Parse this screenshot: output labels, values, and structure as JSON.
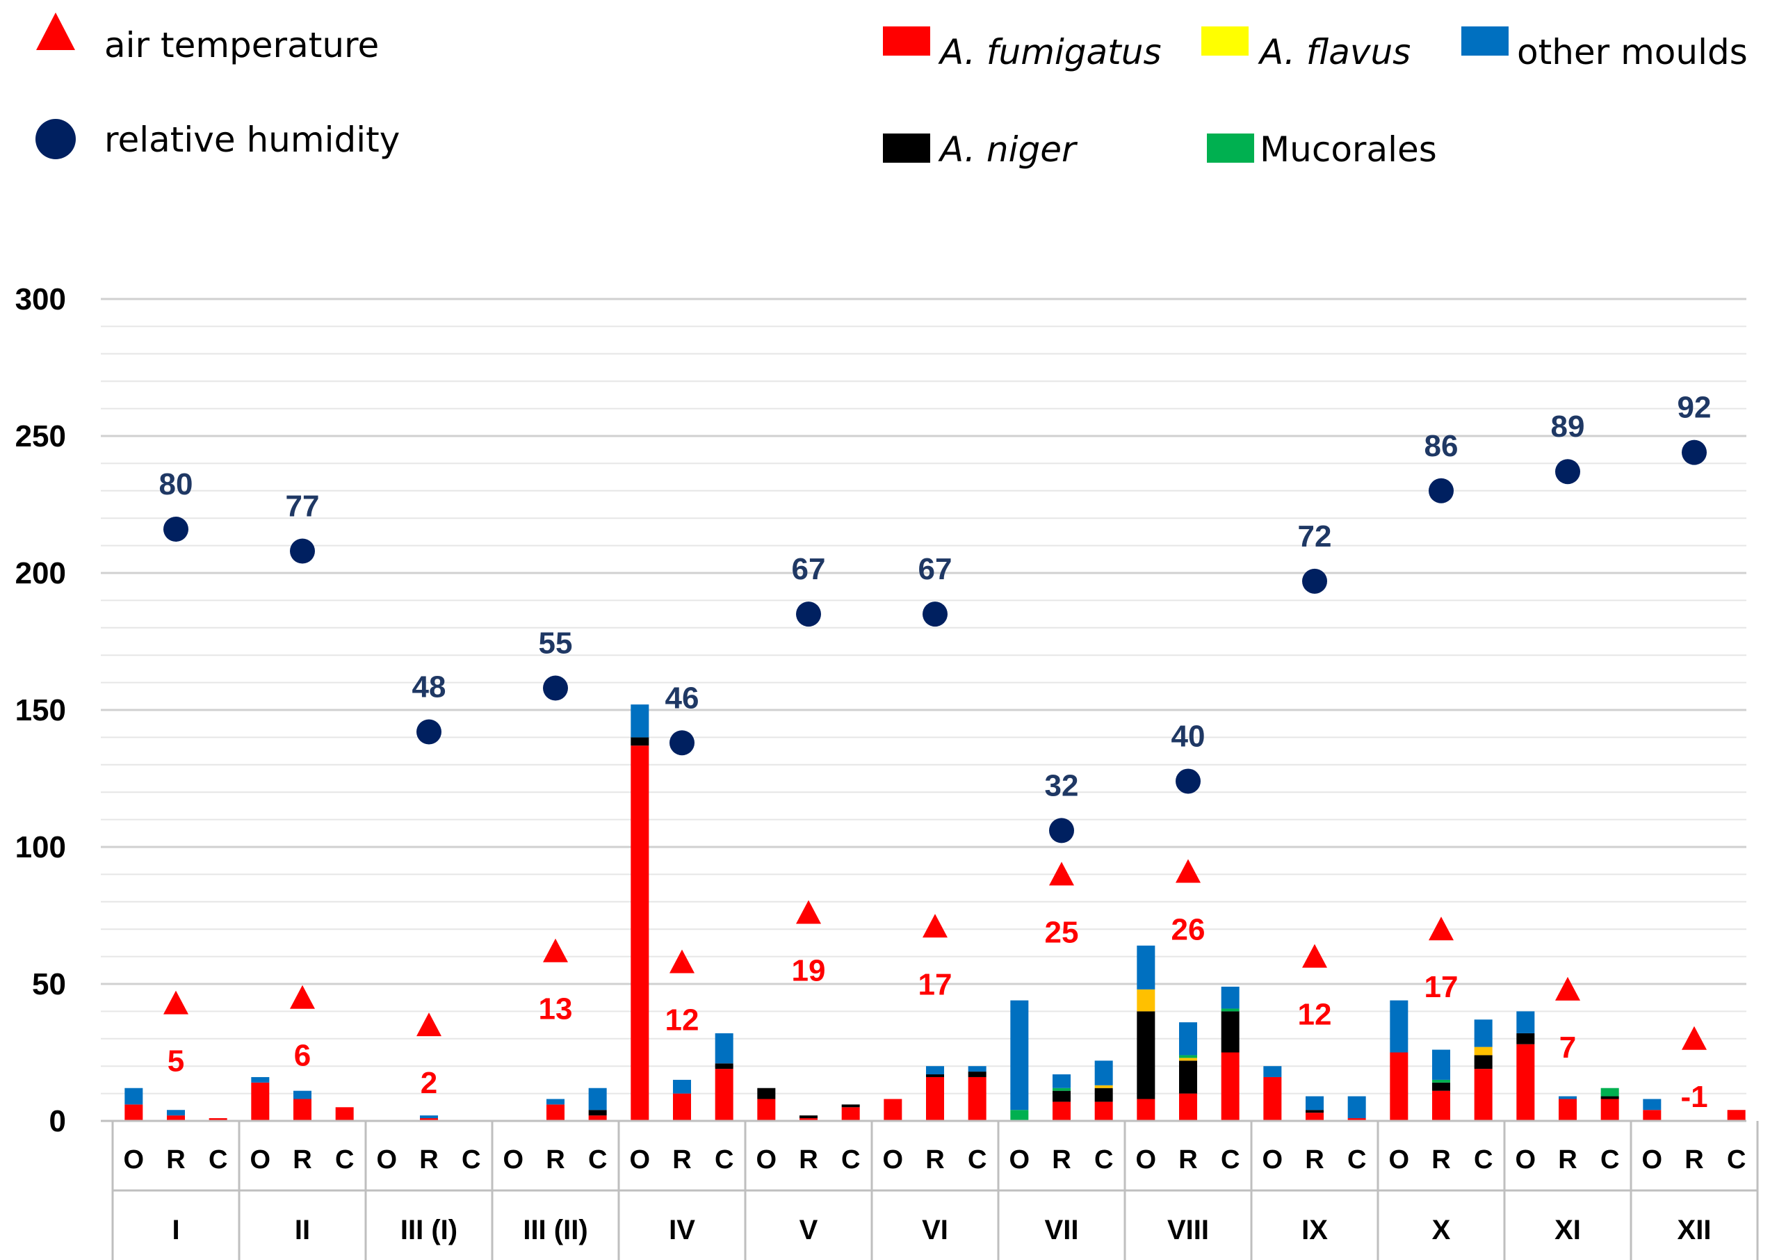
{
  "chart_data": {
    "type": "bar",
    "stacked": true,
    "ylim": [
      0,
      300
    ],
    "yticks": [
      0,
      50,
      100,
      150,
      200,
      250,
      300
    ],
    "groups": [
      "I",
      "II",
      "III (I)",
      "III (II)",
      "IV",
      "V",
      "VI",
      "VII",
      "VIII",
      "IX",
      "X",
      "XI",
      "XII"
    ],
    "subcategories": [
      "O",
      "R",
      "C"
    ],
    "series": [
      {
        "name": "A. fumigatus",
        "color": "#ff0000",
        "values": [
          6,
          2,
          1,
          14,
          8,
          5,
          0,
          1,
          0,
          0,
          6,
          2,
          137,
          10,
          19,
          8,
          1,
          5,
          8,
          16,
          16,
          0,
          7,
          7,
          8,
          10,
          25,
          16,
          3,
          1,
          25,
          11,
          19,
          28,
          8,
          8,
          4,
          0,
          4
        ]
      },
      {
        "name": "A. niger",
        "color": "#000000",
        "values": [
          0,
          0,
          0,
          0,
          0,
          0,
          0,
          0,
          0,
          0,
          0,
          2,
          3,
          0,
          2,
          4,
          1,
          1,
          0,
          1,
          2,
          0,
          4,
          5,
          32,
          12,
          15,
          0,
          1,
          0,
          0,
          3,
          5,
          4,
          0,
          1,
          0,
          0,
          0
        ]
      },
      {
        "name": "A. flavus",
        "color": "#ffc000",
        "values": [
          0,
          0,
          0,
          0,
          0,
          0,
          0,
          0,
          0,
          0,
          0,
          0,
          0,
          0,
          0,
          0,
          0,
          0,
          0,
          0,
          0,
          0,
          0,
          1,
          8,
          1,
          0,
          0,
          0,
          0,
          0,
          0,
          3,
          0,
          0,
          0,
          0,
          0,
          0
        ]
      },
      {
        "name": "Mucorales",
        "color": "#00b050",
        "values": [
          0,
          0,
          0,
          0,
          0,
          0,
          0,
          0,
          0,
          0,
          0,
          0,
          0,
          0,
          0,
          0,
          0,
          0,
          0,
          0,
          0,
          4,
          1,
          0,
          0,
          1,
          1,
          0,
          0,
          0,
          0,
          1,
          0,
          0,
          0,
          3,
          0,
          0,
          0
        ]
      },
      {
        "name": "other moulds",
        "color": "#0070c0",
        "values": [
          6,
          2,
          0,
          2,
          3,
          0,
          0,
          1,
          0,
          0,
          2,
          8,
          12,
          5,
          11,
          0,
          0,
          0,
          0,
          3,
          2,
          40,
          5,
          9,
          16,
          12,
          8,
          4,
          5,
          8,
          19,
          11,
          10,
          8,
          1,
          0,
          4,
          0,
          0
        ]
      }
    ],
    "humidity": {
      "name": "relative humidity",
      "color": "#002060",
      "values": [
        80,
        77,
        48,
        55,
        46,
        67,
        67,
        32,
        40,
        72,
        86,
        89,
        92
      ],
      "plotted": [
        216,
        208,
        142,
        158,
        138,
        185,
        185,
        106,
        124,
        197,
        230,
        237,
        244
      ]
    },
    "temperature": {
      "name": "air temperature",
      "color": "#ff0000",
      "values": [
        5,
        6,
        2,
        13,
        12,
        19,
        17,
        25,
        26,
        12,
        17,
        7,
        -1
      ],
      "plotted": [
        43,
        45,
        35,
        62,
        58,
        76,
        71,
        90,
        91,
        60,
        70,
        48,
        30
      ]
    }
  },
  "legend": {
    "temperature": "air temperature",
    "humidity": "relative humidity",
    "fumigatus": "A. fumigatus",
    "flavus": "A. flavus",
    "other": "other moulds",
    "niger": "A. niger",
    "mucorales": "Mucorales"
  }
}
